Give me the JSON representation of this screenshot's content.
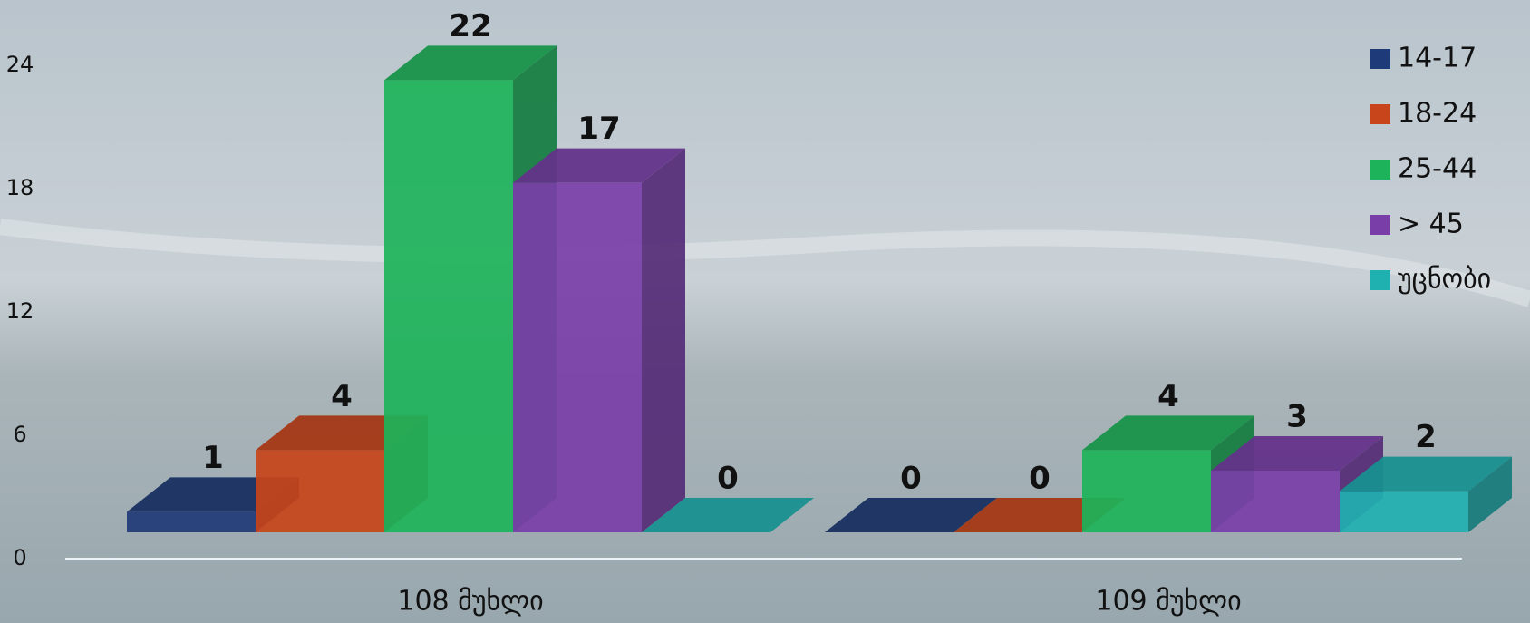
{
  "chart_data": {
    "type": "bar3d",
    "categories": [
      "108 მუხლი",
      "109 მუხლი"
    ],
    "series": [
      {
        "name": "14-17",
        "color": "#1f3a78",
        "values": [
          1,
          0
        ]
      },
      {
        "name": "18-24",
        "color": "#c8441a",
        "values": [
          4,
          0
        ]
      },
      {
        "name": "25-44",
        "color": "#1db35a",
        "values": [
          22,
          4
        ]
      },
      {
        "name": "> 45",
        "color": "#7a3ea8",
        "values": [
          17,
          3
        ]
      },
      {
        "name": "უცნობი",
        "color": "#1fb0b0",
        "values": [
          0,
          2
        ]
      }
    ],
    "ylim": [
      0,
      27
    ],
    "yticks": [
      0,
      6,
      12,
      18,
      24
    ],
    "grid": false,
    "legend": "right"
  }
}
